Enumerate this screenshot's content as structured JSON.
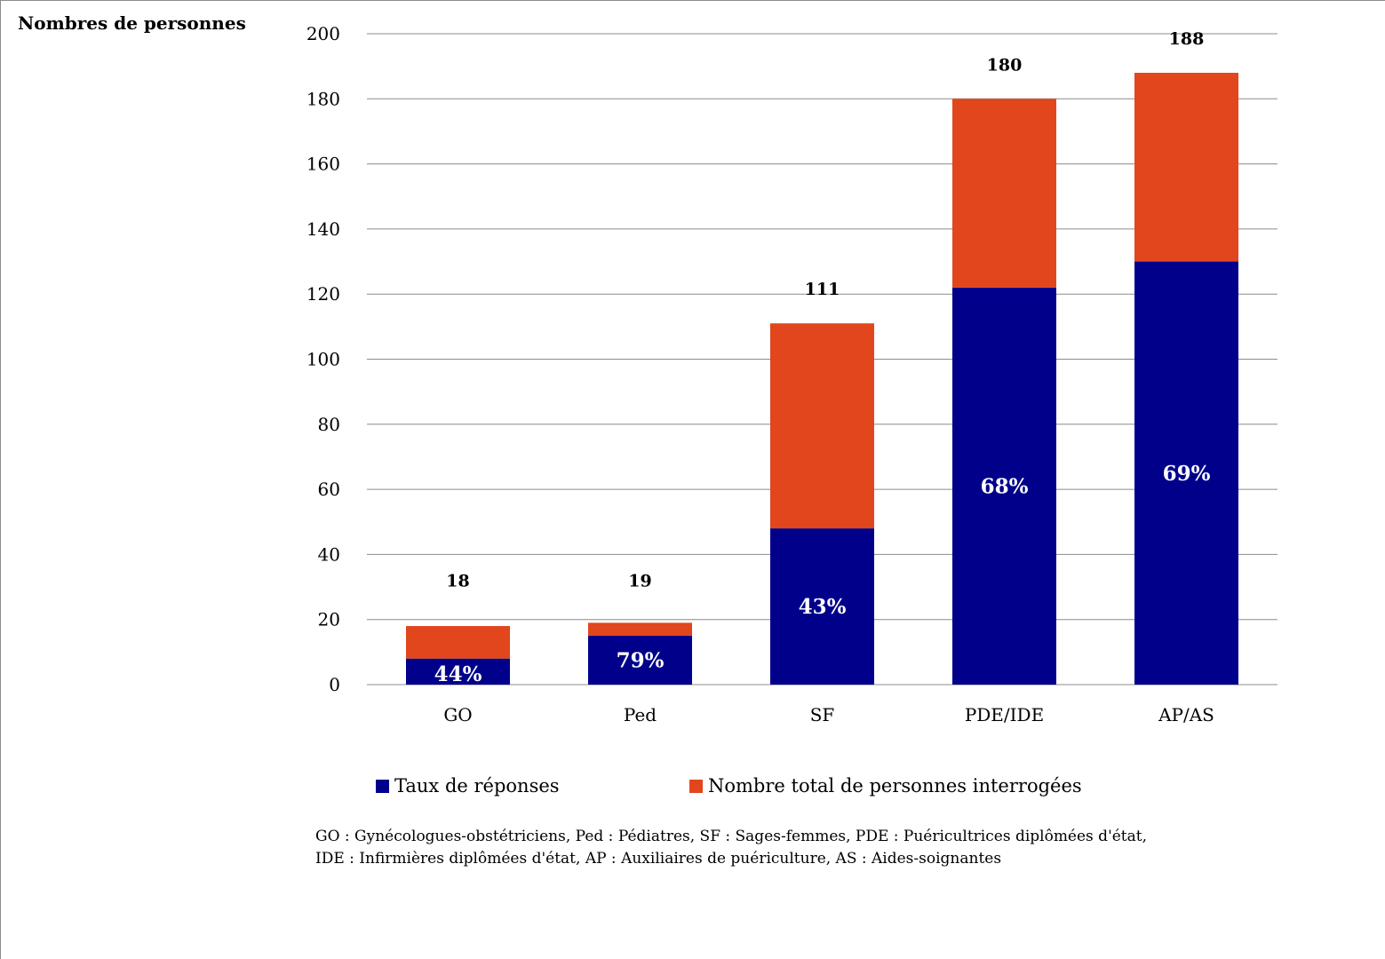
{
  "chart_data": {
    "type": "bar",
    "stacked": true,
    "ylabel": "Nombres de personnes",
    "ylim": [
      0,
      200
    ],
    "yticks": [
      0,
      20,
      40,
      60,
      80,
      100,
      120,
      140,
      160,
      180,
      200
    ],
    "grid": true,
    "legend_position": "bottom",
    "categories": [
      "GO",
      "Ped",
      "SF",
      "PDE/IDE",
      "AP/AS"
    ],
    "totals": [
      18,
      19,
      111,
      180,
      188
    ],
    "series": [
      {
        "name": "Taux de réponses",
        "color": "#00008B",
        "values": [
          8,
          15,
          48,
          122,
          130
        ],
        "labels": [
          "44%",
          "79%",
          "43%",
          "68%",
          "69%"
        ]
      },
      {
        "name": "Nombre total de personnes interrogées",
        "color": "#E1461C",
        "values": [
          10,
          4,
          63,
          58,
          58
        ]
      }
    ]
  },
  "footnote": "GO : Gynécologues-obstétriciens, Ped : Pédiatres, SF : Sages-femmes, PDE : Puéricultrices diplômées d'état, IDE : Infirmières diplômées d'état, AP : Auxiliaires de puériculture, AS : Aides-soignantes"
}
